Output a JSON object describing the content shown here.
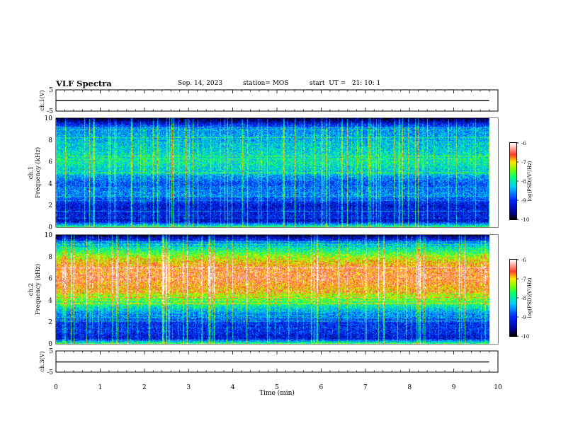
{
  "header": {
    "title": "VLF Spectra",
    "date": "Sep. 14, 2023",
    "station": "station= MOS",
    "start": "start  UT =   21: 10: 1"
  },
  "chart_data": [
    {
      "type": "line",
      "title": "",
      "ylabel": "ch.1(V)",
      "ylim": [
        -5,
        5
      ],
      "yticks": [
        "5",
        "-5"
      ],
      "series": [
        {
          "values": [
            -0.1,
            -0.1,
            -0.1,
            -0.1,
            -0.1,
            -0.1,
            -0.1,
            -0.1,
            -0.1,
            -0.1,
            -0.1
          ]
        }
      ],
      "x": [
        0,
        1,
        2,
        3,
        4,
        5,
        6,
        7,
        8,
        9,
        9.8
      ],
      "xlim": [
        0,
        10
      ]
    },
    {
      "type": "heatmap",
      "ylabel": "ch.1\nFrequency (kHz)",
      "ylabel_lines": [
        "ch.1",
        "Frequency (kHz)"
      ],
      "ylim": [
        0,
        10
      ],
      "yticks": [
        "0",
        "2",
        "4",
        "6",
        "8",
        "10"
      ],
      "xlim": [
        0,
        10
      ],
      "data_xmax": 9.8,
      "colorbar": {
        "label": "log(PSD)(V²/Hz)",
        "range": [
          -10,
          -6
        ],
        "ticks": [
          "-6",
          "-7",
          "-8",
          "-9",
          "-10"
        ]
      },
      "profile": {
        "freq_khz": [
          0,
          0.5,
          1,
          2,
          3,
          4,
          5,
          6,
          7,
          8,
          9,
          9.5,
          10
        ],
        "log_psd": [
          -7.8,
          -9.4,
          -9.2,
          -9.3,
          -8.6,
          -8.9,
          -8.3,
          -8.0,
          -8.2,
          -8.4,
          -8.6,
          -9.2,
          -10
        ]
      }
    },
    {
      "type": "heatmap",
      "ylabel": "ch.2\nFrequency (kHz)",
      "ylabel_lines": [
        "ch.2",
        "Frequency (kHz)"
      ],
      "ylim": [
        0,
        10
      ],
      "yticks": [
        "0",
        "2",
        "4",
        "6",
        "8",
        "10"
      ],
      "xlim": [
        0,
        10
      ],
      "data_xmax": 9.8,
      "colorbar": {
        "label": "log(PSD)(V²/Hz)",
        "range": [
          -10,
          -6
        ],
        "ticks": [
          "-6",
          "-7",
          "-8",
          "-9",
          "-10"
        ]
      },
      "profile": {
        "freq_khz": [
          0,
          0.5,
          1,
          2,
          3,
          4,
          5,
          6,
          7,
          8,
          9,
          9.5,
          10
        ],
        "log_psd": [
          -7.8,
          -9.4,
          -9.1,
          -9.1,
          -8.4,
          -7.6,
          -6.9,
          -6.6,
          -6.7,
          -7.3,
          -8.3,
          -9.0,
          -10
        ]
      }
    },
    {
      "type": "line",
      "ylabel": "ch.3(V)",
      "ylim": [
        -5,
        5
      ],
      "yticks": [
        "5",
        "-5"
      ],
      "series": [
        {
          "values": [
            -0.2,
            -0.2,
            -0.2,
            -0.2,
            -0.2,
            -0.2,
            -0.2,
            -0.2,
            -0.2,
            -0.2,
            -0.2
          ]
        }
      ],
      "x": [
        0,
        1,
        2,
        3,
        4,
        5,
        6,
        7,
        8,
        9,
        9.8
      ],
      "xlim": [
        0,
        10
      ],
      "xlabel": "Time  (min)",
      "xticks": [
        "0",
        "1",
        "2",
        "3",
        "4",
        "5",
        "6",
        "7",
        "8",
        "9",
        "10"
      ]
    }
  ]
}
